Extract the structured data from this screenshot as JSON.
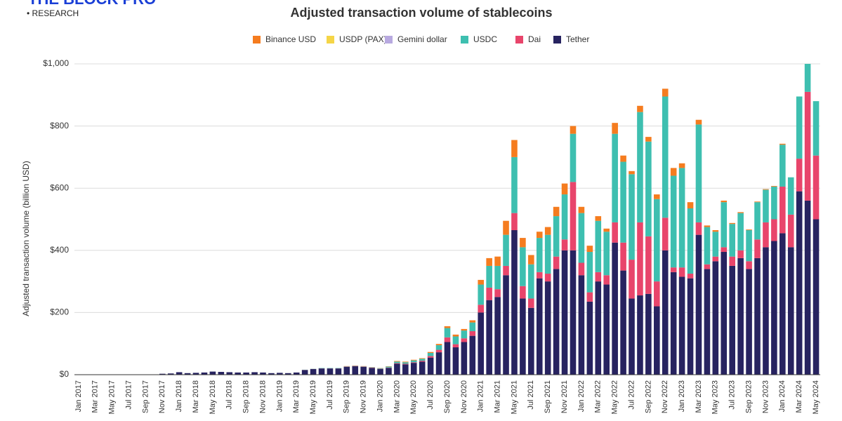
{
  "brand": "THE BLOCK PRO",
  "brand_sub": "• RESEARCH",
  "chart_data": {
    "type": "stacked_bar",
    "title": "Adjusted transaction volume of stablecoins",
    "y_label": "Adjusted transaction volume (billion USD)",
    "ylim": [
      0,
      1000
    ],
    "yticks": [
      {
        "value": 0,
        "label": "$0"
      },
      {
        "value": 200,
        "label": "$200"
      },
      {
        "value": 400,
        "label": "$400"
      },
      {
        "value": 600,
        "label": "$600"
      },
      {
        "value": 800,
        "label": "$800"
      },
      {
        "value": 1000,
        "label": "$1,000"
      }
    ],
    "grid": true,
    "legend": "top",
    "categories": [
      "Jan 2017",
      null,
      "Mar 2017",
      null,
      "May 2017",
      null,
      "Jul 2017",
      null,
      "Sep 2017",
      null,
      "Nov 2017",
      null,
      "Jan 2018",
      null,
      "Mar 2018",
      null,
      "May 2018",
      null,
      "Jul 2018",
      null,
      "Sep 2018",
      null,
      "Nov 2018",
      null,
      "Jan 2019",
      null,
      "Mar 2019",
      null,
      "May 2019",
      null,
      "Jul 2019",
      null,
      "Sep 2019",
      null,
      "Nov 2019",
      null,
      "Jan 2020",
      null,
      "Mar 2020",
      null,
      "May 2020",
      null,
      "Jul 2020",
      null,
      "Sep 2020",
      null,
      "Nov 2020",
      null,
      "Jan 2021",
      null,
      "Mar 2021",
      null,
      "May 2021",
      null,
      "Jul 2021",
      null,
      "Sep 2021",
      null,
      "Nov 2021",
      null,
      "Jan 2022",
      null,
      "Mar 2022",
      null,
      "May 2022",
      null,
      "Jul 2022",
      null,
      "Sep 2022",
      null,
      "Nov 2022",
      null,
      "Jan 2023",
      null,
      "Mar 2023",
      null,
      "May 2023",
      null,
      "Jul 2023",
      null,
      "Sep 2023",
      null,
      "Nov 2023",
      null,
      "Jan 2024",
      null,
      "Mar 2024",
      null,
      "May 2024"
    ],
    "series": [
      {
        "name": "Binance USD",
        "color": "#f57c1f",
        "values": [
          0,
          0,
          0,
          0,
          0,
          0,
          0,
          0,
          0,
          0,
          0,
          0,
          0,
          0,
          0,
          0,
          0,
          0,
          0,
          0,
          0,
          0,
          0,
          0,
          0,
          0,
          0,
          0,
          0,
          0,
          0,
          0,
          0.5,
          0.5,
          0.5,
          0.5,
          0.5,
          1,
          2,
          2,
          2,
          2,
          3,
          4,
          6,
          6,
          5,
          7,
          15,
          25,
          30,
          45,
          55,
          30,
          30,
          20,
          25,
          30,
          35,
          25,
          20,
          20,
          15,
          10,
          35,
          20,
          10,
          20,
          15,
          15,
          25,
          25,
          15,
          20,
          15,
          5,
          5,
          5,
          3,
          3,
          2,
          2,
          2,
          2,
          3,
          0,
          0,
          0,
          0
        ]
      },
      {
        "name": "USDP (PAX)",
        "color": "#f5d547",
        "values": [
          0,
          0,
          0,
          0,
          0,
          0,
          0,
          0,
          0,
          0,
          0,
          0,
          0,
          0,
          0,
          0,
          0,
          0,
          0,
          0,
          0,
          0,
          0,
          0,
          0,
          0,
          0,
          0,
          0,
          0,
          0,
          0,
          0,
          0,
          0,
          0,
          0,
          0,
          0,
          0,
          0,
          0,
          0,
          0,
          0,
          0,
          0,
          0,
          0,
          0,
          0,
          0,
          0,
          0,
          0,
          0,
          0,
          0,
          0,
          0,
          0,
          0,
          0,
          0,
          0,
          0,
          0,
          0,
          0,
          0,
          0,
          0,
          0,
          0,
          0,
          0,
          0,
          0,
          0,
          0,
          0,
          0,
          0,
          0,
          0,
          0,
          0,
          0,
          0
        ]
      },
      {
        "name": "Gemini dollar",
        "color": "#b8a9e0",
        "values": [
          0,
          0,
          0,
          0,
          0,
          0,
          0,
          0,
          0,
          0,
          0,
          0,
          0,
          0,
          0,
          0,
          0,
          0,
          0,
          0,
          0,
          0,
          0,
          0,
          0,
          0,
          0,
          0,
          0,
          0,
          0,
          0,
          0,
          0,
          0,
          0,
          0,
          0,
          0,
          0,
          0,
          0,
          0,
          0,
          0,
          0,
          0,
          0,
          0,
          0,
          0,
          0,
          0,
          0,
          0,
          0,
          0,
          0,
          0,
          0,
          0,
          0,
          0,
          0,
          0,
          0,
          0,
          0,
          0,
          0,
          0,
          0,
          0,
          0,
          0,
          0,
          0,
          0,
          0,
          0,
          0,
          0,
          0,
          0,
          0,
          0,
          0,
          0,
          0
        ]
      },
      {
        "name": "USDC",
        "color": "#3ebfb0",
        "values": [
          0,
          0,
          0,
          0,
          0,
          0,
          0,
          0,
          0,
          0,
          0,
          0,
          0,
          0,
          0,
          0,
          0,
          0,
          0,
          0,
          0,
          0,
          0,
          0,
          0,
          0,
          0,
          0.5,
          0.5,
          1,
          1,
          1,
          1,
          1,
          1,
          1,
          2,
          3,
          5,
          5,
          6,
          6,
          10,
          15,
          30,
          25,
          25,
          28,
          65,
          70,
          75,
          100,
          180,
          125,
          110,
          110,
          125,
          130,
          145,
          155,
          160,
          130,
          165,
          140,
          285,
          260,
          275,
          355,
          305,
          265,
          390,
          295,
          320,
          210,
          315,
          120,
          80,
          145,
          105,
          120,
          100,
          120,
          105,
          105,
          135,
          120,
          200,
          90,
          175
        ]
      },
      {
        "name": "Dai",
        "color": "#e8456b",
        "values": [
          0,
          0,
          0,
          0,
          0,
          0,
          0,
          0,
          0,
          0,
          0,
          0,
          0,
          0,
          0,
          0,
          0,
          0,
          0,
          0,
          0,
          0,
          0,
          0,
          0,
          0,
          0,
          0.5,
          0.5,
          0.5,
          0.5,
          0.5,
          1,
          1,
          1,
          1,
          1,
          1,
          2,
          2,
          2,
          3,
          5,
          8,
          15,
          10,
          12,
          15,
          25,
          40,
          25,
          30,
          55,
          40,
          30,
          20,
          25,
          40,
          35,
          220,
          40,
          30,
          30,
          30,
          65,
          90,
          125,
          235,
          185,
          80,
          105,
          15,
          30,
          15,
          40,
          15,
          15,
          15,
          30,
          25,
          25,
          60,
          80,
          70,
          150,
          105,
          105,
          350,
          205
        ]
      },
      {
        "name": "Tether",
        "color": "#272360",
        "values": [
          0.3,
          0.3,
          0.5,
          0.5,
          0.5,
          0.5,
          0.8,
          1,
          1,
          1,
          3,
          4,
          8,
          5,
          6,
          7,
          10,
          9,
          8,
          7,
          7,
          8,
          7,
          5,
          6,
          5,
          7,
          15,
          18,
          20,
          20,
          20,
          25,
          27,
          25,
          22,
          18,
          22,
          35,
          33,
          38,
          42,
          55,
          72,
          105,
          88,
          105,
          125,
          200,
          240,
          250,
          320,
          465,
          245,
          215,
          310,
          300,
          340,
          400,
          400,
          320,
          235,
          300,
          290,
          425,
          335,
          245,
          255,
          260,
          220,
          400,
          330,
          315,
          310,
          450,
          340,
          365,
          395,
          350,
          375,
          340,
          375,
          410,
          430,
          455,
          410,
          590,
          560,
          500
        ]
      }
    ]
  }
}
